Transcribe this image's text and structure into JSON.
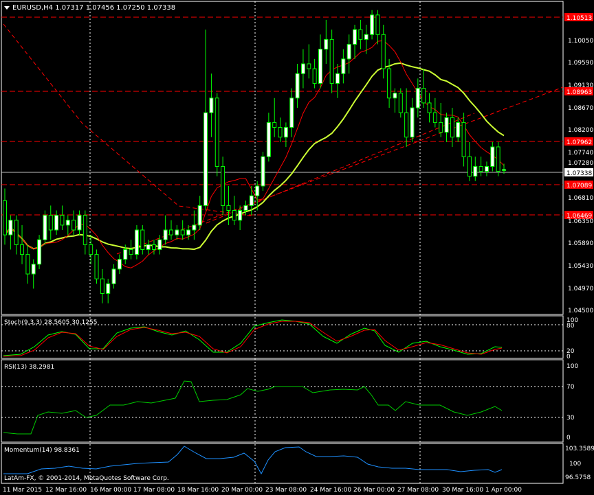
{
  "chart": {
    "symbol_line": "EURUSD,H4  1.07317 1.07456 1.07250 1.07338",
    "copyright": "LatAm-FX, © 2001-2014, MetaQuotes Software Corp.",
    "current_price": "1.07338",
    "menu_icon": "triangle-down-icon"
  },
  "price_axis": {
    "ticks": [
      "1.10050",
      "1.09590",
      "1.09130",
      "1.08670",
      "1.08200",
      "1.07740",
      "1.07280",
      "1.06810",
      "1.06350",
      "1.05890",
      "1.05430",
      "1.04970",
      "1.04500"
    ],
    "highlighted_levels": [
      "1.10513",
      "1.08963",
      "1.07962",
      "1.07089",
      "1.06469"
    ]
  },
  "time_axis": [
    "11 Mar 2015",
    "12 Mar 16:00",
    "16 Mar 00:00",
    "17 Mar 08:00",
    "18 Mar 16:00",
    "20 Mar 00:00",
    "23 Mar 08:00",
    "24 Mar 16:00",
    "26 Mar 00:00",
    "27 Mar 08:00",
    "30 Mar 16:00",
    "1 Apr 00:00"
  ],
  "indicators": {
    "stoch": {
      "label": "Stoch(9,3,3) 28.5605 30.1255",
      "ticks": [
        "100",
        "80",
        "20",
        "0"
      ]
    },
    "rsi": {
      "label": "RSI(13) 38.2981",
      "ticks": [
        "100",
        "70",
        "30",
        "0"
      ]
    },
    "momentum": {
      "label": "Momentum(14) 98.8361",
      "ticks": [
        "103.3589",
        "100",
        "96.5758"
      ]
    }
  },
  "colors": {
    "background": "#000000",
    "bull_candle": "#ffffff",
    "bear_candle": "#000000",
    "candle_stroke": "#00ff00",
    "level_line": "#ff0000",
    "level_label_bg": "#ff0000",
    "slow_ma": "#ccff33",
    "fast_ma": "#ff0000",
    "stoch_main": "#00ff00",
    "stoch_signal": "#ff0000",
    "rsi": "#00cc00",
    "momentum": "#1e90ff",
    "grid": "#ffffff"
  },
  "chart_data": {
    "type": "candlestick",
    "symbol": "EURUSD",
    "timeframe": "H4",
    "ohlc_last": {
      "open": 1.07317,
      "high": 1.07456,
      "low": 1.0725,
      "close": 1.07338
    },
    "ylim": [
      1.044,
      1.1075
    ],
    "horizontal_levels": [
      1.10513,
      1.08963,
      1.07962,
      1.07089,
      1.06469
    ],
    "candles": [
      [
        1.067,
        1.0695,
        1.058,
        1.06
      ],
      [
        1.06,
        1.064,
        1.057,
        1.063
      ],
      [
        1.063,
        1.064,
        1.056,
        1.058
      ],
      [
        1.058,
        1.062,
        1.054,
        1.056
      ],
      [
        1.056,
        1.058,
        1.05,
        1.052
      ],
      [
        1.052,
        1.055,
        1.049,
        1.054
      ],
      [
        1.054,
        1.06,
        1.053,
        1.059
      ],
      [
        1.059,
        1.065,
        1.058,
        1.064
      ],
      [
        1.064,
        1.066,
        1.059,
        1.061
      ],
      [
        1.061,
        1.065,
        1.06,
        1.064
      ],
      [
        1.064,
        1.066,
        1.061,
        1.062
      ],
      [
        1.062,
        1.064,
        1.06,
        1.063
      ],
      [
        1.063,
        1.065,
        1.06,
        1.061
      ],
      [
        1.061,
        1.065,
        1.06,
        1.064
      ],
      [
        1.064,
        1.065,
        1.056,
        1.058
      ],
      [
        1.058,
        1.06,
        1.054,
        1.056
      ],
      [
        1.056,
        1.057,
        1.05,
        1.051
      ],
      [
        1.051,
        1.053,
        1.046,
        1.048
      ],
      [
        1.048,
        1.051,
        1.046,
        1.05
      ],
      [
        1.05,
        1.054,
        1.049,
        1.053
      ],
      [
        1.053,
        1.056,
        1.052,
        1.055
      ],
      [
        1.055,
        1.058,
        1.054,
        1.057
      ],
      [
        1.057,
        1.059,
        1.055,
        1.056
      ],
      [
        1.056,
        1.062,
        1.055,
        1.061
      ],
      [
        1.061,
        1.062,
        1.056,
        1.057
      ],
      [
        1.057,
        1.059,
        1.056,
        1.058
      ],
      [
        1.058,
        1.059,
        1.056,
        1.057
      ],
      [
        1.057,
        1.06,
        1.056,
        1.059
      ],
      [
        1.059,
        1.064,
        1.058,
        1.061
      ],
      [
        1.061,
        1.063,
        1.059,
        1.06
      ],
      [
        1.06,
        1.062,
        1.059,
        1.061
      ],
      [
        1.061,
        1.063,
        1.059,
        1.06
      ],
      [
        1.06,
        1.062,
        1.059,
        1.061
      ],
      [
        1.061,
        1.065,
        1.059,
        1.062
      ],
      [
        1.062,
        1.068,
        1.061,
        1.066
      ],
      [
        1.066,
        1.102,
        1.065,
        1.085
      ],
      [
        1.085,
        1.093,
        1.08,
        1.088
      ],
      [
        1.088,
        1.089,
        1.072,
        1.074
      ],
      [
        1.074,
        1.076,
        1.064,
        1.066
      ],
      [
        1.066,
        1.07,
        1.062,
        1.065
      ],
      [
        1.065,
        1.068,
        1.062,
        1.063
      ],
      [
        1.063,
        1.066,
        1.061,
        1.065
      ],
      [
        1.065,
        1.067,
        1.064,
        1.066
      ],
      [
        1.066,
        1.07,
        1.064,
        1.068
      ],
      [
        1.068,
        1.071,
        1.065,
        1.07
      ],
      [
        1.07,
        1.077,
        1.069,
        1.076
      ],
      [
        1.076,
        1.085,
        1.075,
        1.083
      ],
      [
        1.083,
        1.088,
        1.08,
        1.082
      ],
      [
        1.082,
        1.084,
        1.079,
        1.08
      ],
      [
        1.08,
        1.083,
        1.078,
        1.082
      ],
      [
        1.082,
        1.09,
        1.08,
        1.088
      ],
      [
        1.088,
        1.095,
        1.086,
        1.093
      ],
      [
        1.093,
        1.098,
        1.09,
        1.095
      ],
      [
        1.095,
        1.099,
        1.092,
        1.094
      ],
      [
        1.094,
        1.096,
        1.09,
        1.091
      ],
      [
        1.091,
        1.101,
        1.09,
        1.098
      ],
      [
        1.098,
        1.104,
        1.095,
        1.1
      ],
      [
        1.1,
        1.102,
        1.089,
        1.091
      ],
      [
        1.091,
        1.095,
        1.088,
        1.093
      ],
      [
        1.093,
        1.098,
        1.091,
        1.096
      ],
      [
        1.096,
        1.101,
        1.093,
        1.099
      ],
      [
        1.099,
        1.103,
        1.096,
        1.102
      ],
      [
        1.102,
        1.104,
        1.098,
        1.1
      ],
      [
        1.1,
        1.103,
        1.097,
        1.101
      ],
      [
        1.101,
        1.106,
        1.1,
        1.105
      ],
      [
        1.105,
        1.106,
        1.099,
        1.101
      ],
      [
        1.101,
        1.103,
        1.092,
        1.094
      ],
      [
        1.094,
        1.096,
        1.086,
        1.088
      ],
      [
        1.088,
        1.09,
        1.085,
        1.089
      ],
      [
        1.089,
        1.09,
        1.084,
        1.085
      ],
      [
        1.085,
        1.09,
        1.078,
        1.08
      ],
      [
        1.08,
        1.088,
        1.079,
        1.086
      ],
      [
        1.086,
        1.092,
        1.084,
        1.09
      ],
      [
        1.09,
        1.094,
        1.086,
        1.087
      ],
      [
        1.087,
        1.089,
        1.083,
        1.085
      ],
      [
        1.085,
        1.088,
        1.082,
        1.083
      ],
      [
        1.083,
        1.087,
        1.08,
        1.081
      ],
      [
        1.081,
        1.085,
        1.079,
        1.084
      ],
      [
        1.084,
        1.086,
        1.078,
        1.08
      ],
      [
        1.08,
        1.084,
        1.079,
        1.083
      ],
      [
        1.083,
        1.085,
        1.074,
        1.076
      ],
      [
        1.076,
        1.079,
        1.071,
        1.072
      ],
      [
        1.072,
        1.076,
        1.071,
        1.074
      ],
      [
        1.074,
        1.076,
        1.072,
        1.073
      ],
      [
        1.073,
        1.075,
        1.072,
        1.074
      ],
      [
        1.074,
        1.079,
        1.073,
        1.078
      ],
      [
        1.078,
        1.079,
        1.072,
        1.073
      ],
      [
        1.07317,
        1.07456,
        1.0725,
        1.07338
      ]
    ]
  }
}
